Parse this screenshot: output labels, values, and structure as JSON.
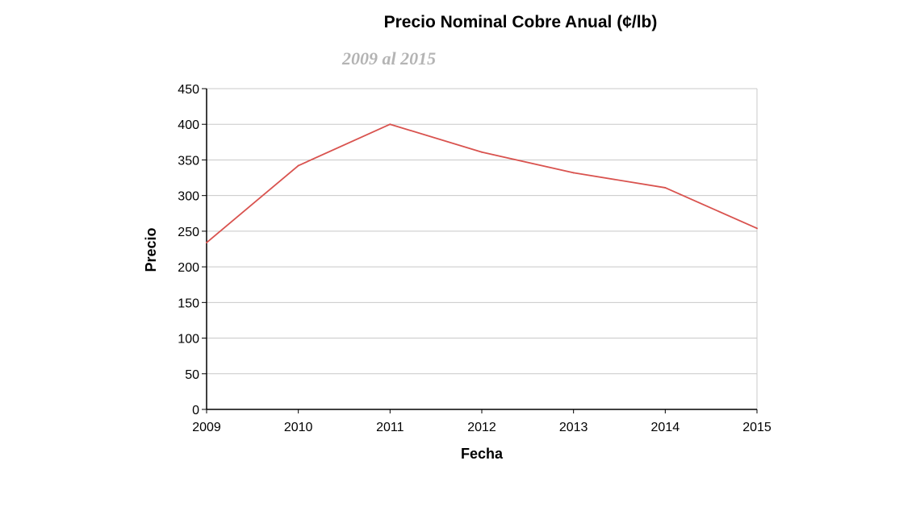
{
  "colors": {
    "line": "#d9534f",
    "grid": "#c8c8c8",
    "axis": "#000000",
    "subtitle": "#b4b4b4"
  },
  "chart_data": {
    "type": "line",
    "title": "Precio Nominal Cobre Anual (¢/lb)",
    "subtitle": "2009 al 2015",
    "xlabel": "Fecha",
    "ylabel": "Precio",
    "x": [
      "2009",
      "2010",
      "2011",
      "2012",
      "2013",
      "2014",
      "2015"
    ],
    "series": [
      {
        "values": [
          234,
          342,
          400,
          361,
          332,
          311,
          254
        ]
      }
    ],
    "ylim": [
      0,
      450
    ],
    "yticks": [
      "0",
      "50",
      "100",
      "150",
      "200",
      "250",
      "300",
      "350",
      "400",
      "450"
    ],
    "grid": true,
    "legend": "none"
  }
}
